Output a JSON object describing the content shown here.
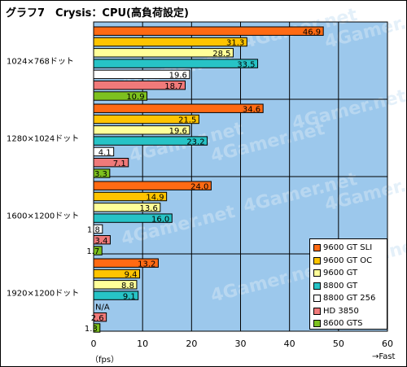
{
  "title": "グラフ7　Crysis：CPU(高負荷設定)",
  "unit_label": "（fps）",
  "fast_label": "→Fast",
  "watermark": "4Gamer.net",
  "colors": {
    "plot_background": "#9cc8ec",
    "grid": "#000000"
  },
  "chart_data": {
    "type": "bar",
    "orientation": "horizontal",
    "title": "グラフ7　Crysis：CPU(高負荷設定)",
    "xlabel": "（fps）",
    "xlim": [
      0,
      60
    ],
    "xticks": [
      0,
      10,
      20,
      30,
      40,
      50,
      60
    ],
    "grid": true,
    "legend_position": "bottom-right",
    "categories": [
      "1024×768ドット",
      "1280×1024ドット",
      "1600×1200ドット",
      "1920×1200ドット"
    ],
    "series": [
      {
        "name": "9600 GT SLI",
        "color": "#ff6a13",
        "values": [
          46.9,
          34.6,
          24.0,
          13.2
        ],
        "labels": [
          "46.9",
          "34.6",
          "24.0",
          "13.2"
        ]
      },
      {
        "name": "9600 GT OC",
        "color": "#ffc400",
        "values": [
          31.3,
          21.5,
          14.9,
          9.4
        ],
        "labels": [
          "31.3",
          "21.5",
          "14.9",
          "9.4"
        ]
      },
      {
        "name": "9600 GT",
        "color": "#ffff99",
        "values": [
          28.5,
          19.6,
          13.6,
          8.8
        ],
        "labels": [
          "28.5",
          "19.6",
          "13.6",
          "8.8"
        ]
      },
      {
        "name": "8800 GT",
        "color": "#27c3c6",
        "values": [
          33.5,
          23.2,
          16.0,
          9.1
        ],
        "labels": [
          "33.5",
          "23.2",
          "16.0",
          "9.1"
        ]
      },
      {
        "name": "8800 GT 256",
        "color": "#ffffff",
        "values": [
          19.6,
          4.1,
          1.8,
          null
        ],
        "labels": [
          "19.6",
          "4.1",
          "1.8",
          "N/A"
        ]
      },
      {
        "name": "HD 3850",
        "color": "#f07a7a",
        "values": [
          18.7,
          7.1,
          3.4,
          2.6
        ],
        "labels": [
          "18.7",
          "7.1",
          "3.4",
          "2.6"
        ]
      },
      {
        "name": "8600 GTS",
        "color": "#7dc11f",
        "values": [
          10.9,
          3.3,
          1.7,
          1.3
        ],
        "labels": [
          "10.9",
          "3.3",
          "1.7",
          "1.3"
        ]
      }
    ]
  }
}
